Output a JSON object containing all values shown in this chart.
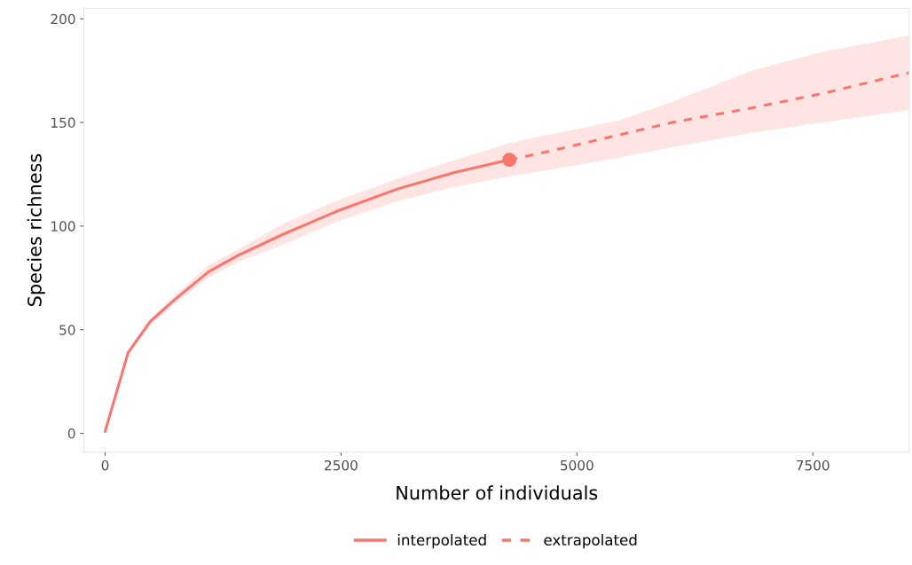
{
  "chart_data": {
    "type": "line",
    "xlabel": "Number of individuals",
    "ylabel": "Species richness",
    "xlim": [
      -225,
      8522
    ],
    "ylim": [
      -9,
      205
    ],
    "xticks": [
      0,
      2500,
      5000,
      7500
    ],
    "yticks": [
      0,
      50,
      100,
      150,
      200
    ],
    "grid": false,
    "legend": "bottom",
    "series": [
      {
        "name": "interpolated",
        "color": "#f8766d",
        "line_style": "solid",
        "x": [
          0,
          244,
          478,
          750,
          1097,
          1416,
          1884,
          2447,
          3103,
          3712,
          4284
        ],
        "values": [
          1,
          39,
          54,
          65,
          78,
          86,
          96,
          107,
          118,
          126,
          132
        ],
        "lower": [
          1,
          38,
          52,
          63,
          75,
          83,
          91,
          102,
          112,
          119,
          124
        ],
        "upper": [
          1,
          39,
          55,
          67,
          81,
          89,
          101,
          112,
          123,
          132,
          140
        ]
      },
      {
        "name": "extrapolated",
        "color": "#f8766d",
        "line_style": "dashed",
        "x": [
          4284,
          4697,
          5447,
          6009,
          6853,
          7603,
          8522
        ],
        "values": [
          132,
          136,
          144,
          150,
          157,
          164,
          174
        ],
        "lower": [
          124,
          127,
          133,
          138,
          145,
          150,
          156
        ],
        "upper": [
          140,
          144,
          151,
          160,
          175,
          184,
          192
        ]
      },
      {
        "type": "scatter",
        "marker": "circle",
        "color": "#f8766d",
        "x": [
          4284
        ],
        "values": [
          132
        ]
      }
    ]
  }
}
